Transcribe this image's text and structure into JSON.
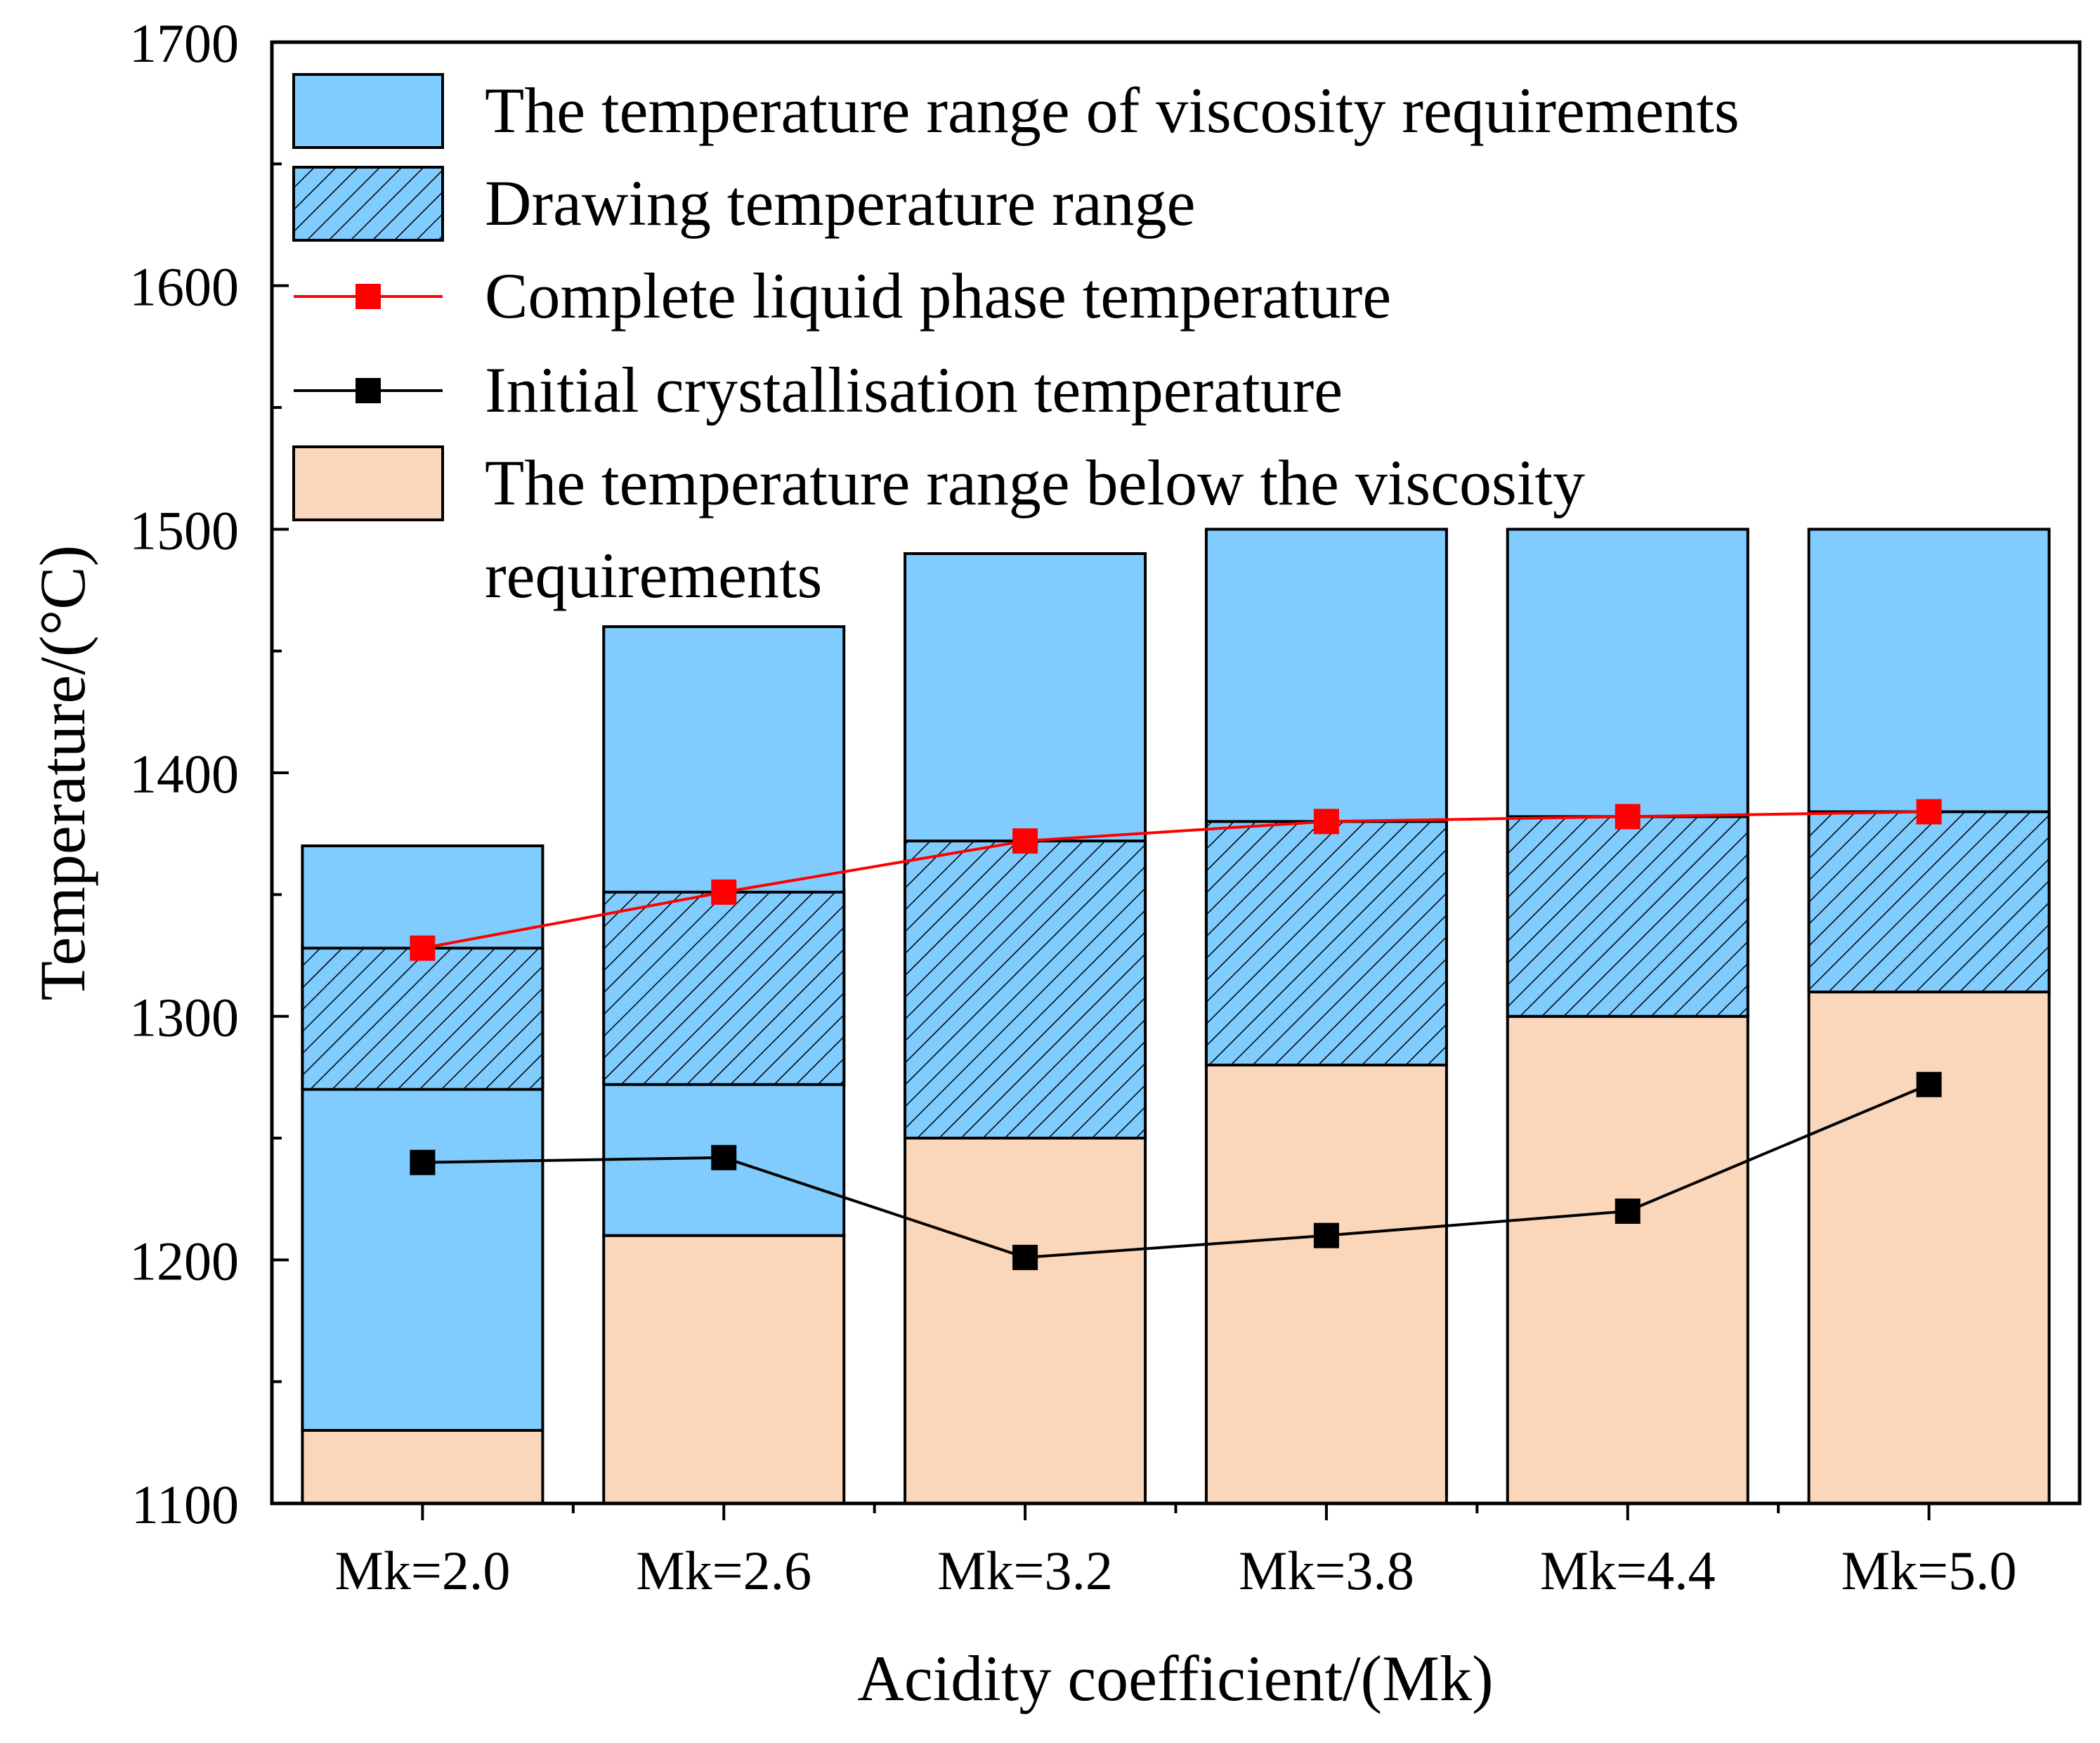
{
  "chart_data": {
    "type": "bar",
    "title": "",
    "xlabel": "Acidity coefficient/(Mk)",
    "ylabel": "Temperature/(°C)",
    "ylim": [
      1100,
      1700
    ],
    "yticks": [
      1100,
      1200,
      1300,
      1400,
      1500,
      1600,
      1700
    ],
    "grid": false,
    "categories": [
      "Mk=2.0",
      "Mk=2.6",
      "Mk=3.2",
      "Mk=3.8",
      "Mk=4.4",
      "Mk=5.0"
    ],
    "bars": [
      {
        "below_low": 1100,
        "below_high": 1130,
        "viscosity_high": 1370,
        "drawing_low": 1270,
        "drawing_high": 1328
      },
      {
        "below_low": 1100,
        "below_high": 1210,
        "viscosity_high": 1460,
        "drawing_low": 1272,
        "drawing_high": 1351
      },
      {
        "below_low": 1100,
        "below_high": 1250,
        "viscosity_high": 1490,
        "drawing_low": 1250,
        "drawing_high": 1372
      },
      {
        "below_low": 1100,
        "below_high": 1280,
        "viscosity_high": 1500,
        "drawing_low": 1280,
        "drawing_high": 1380
      },
      {
        "below_low": 1100,
        "below_high": 1300,
        "viscosity_high": 1500,
        "drawing_low": 1300,
        "drawing_high": 1382
      },
      {
        "below_low": 1100,
        "below_high": 1310,
        "viscosity_high": 1500,
        "drawing_low": 1310,
        "drawing_high": 1384
      }
    ],
    "series": [
      {
        "name": "Complete liquid phase temperature",
        "type": "line",
        "color": "#ff0000",
        "values": [
          1328,
          1351,
          1372,
          1380,
          1382,
          1384
        ]
      },
      {
        "name": "Initial crystallisation temperature",
        "type": "line",
        "color": "#000000",
        "values": [
          1240,
          1242,
          1201,
          1210,
          1220,
          1272
        ]
      }
    ],
    "legend": {
      "position": "top-left",
      "items": [
        {
          "key": "viscosity",
          "type": "rect",
          "color": "#80ccff",
          "lines": [
            "The temperature range of viscosity requirements"
          ]
        },
        {
          "key": "drawing",
          "type": "hatched",
          "color": "#80ccff",
          "lines": [
            "Drawing temperature range"
          ]
        },
        {
          "key": "liquid",
          "type": "line",
          "color": "#ff0000",
          "lines": [
            "Complete liquid phase temperature"
          ]
        },
        {
          "key": "crystal",
          "type": "line",
          "color": "#000000",
          "lines": [
            "Initial crystallisation temperature"
          ]
        },
        {
          "key": "below",
          "type": "rect",
          "color": "#fad7bb",
          "lines": [
            "The temperature range below the viscosity",
            " requirements"
          ]
        }
      ]
    },
    "colors": {
      "viscosity": "#80ccff",
      "below": "#fad7bb",
      "liquid_line": "#ff0000",
      "crystal_line": "#000000"
    }
  }
}
